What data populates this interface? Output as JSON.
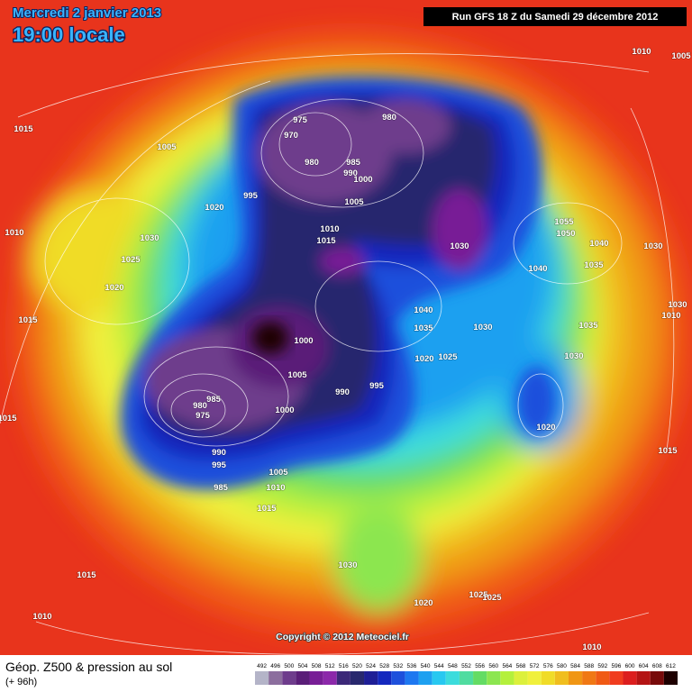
{
  "header": {
    "date": "Mercredi 2 janvier 2013",
    "time": "19:00 locale",
    "run": "Run GFS 18 Z du Samedi 29 décembre 2012"
  },
  "isobar_labels": [
    "1010",
    "1005",
    "1015",
    "975",
    "980",
    "970",
    "1005",
    "980",
    "985",
    "990",
    "1000",
    "995",
    "1005",
    "1020",
    "1010",
    "1030",
    "1025",
    "1020",
    "1015",
    "1010",
    "1015",
    "1055",
    "1050",
    "1030",
    "1040",
    "1030",
    "1040",
    "1035",
    "1030",
    "1010",
    "1000",
    "1040",
    "1035",
    "1030",
    "1020",
    "1025",
    "1035",
    "1030",
    "1005",
    "990",
    "995",
    "985",
    "980",
    "975",
    "1000",
    "1020",
    "1015",
    "1015",
    "990",
    "995",
    "1005",
    "1010",
    "985",
    "1015",
    "1015",
    "1030",
    "1010",
    "1020",
    "1025",
    "1025",
    "1010"
  ],
  "copyright": "Copyright © 2012 Meteociel.fr",
  "footer": {
    "title": "Géop. Z500 & pression au sol",
    "lead": "(+ 96h)"
  },
  "scale": {
    "labels": [
      492,
      496,
      500,
      504,
      508,
      512,
      516,
      520,
      524,
      528,
      532,
      536,
      540,
      544,
      548,
      552,
      556,
      560,
      564,
      568,
      572,
      576,
      580,
      584,
      588,
      592,
      596,
      600,
      604,
      608,
      612
    ],
    "colors": [
      "#b4b4c8",
      "#8c6e9e",
      "#6e3c8c",
      "#5a1e78",
      "#781e96",
      "#8c28aa",
      "#3c2878",
      "#28286e",
      "#1e1e96",
      "#1428be",
      "#1e50dc",
      "#1e78f0",
      "#1ea0f0",
      "#28c8f0",
      "#3cdcdc",
      "#50dca0",
      "#64dc64",
      "#8ce650",
      "#b4f03c",
      "#dcf03c",
      "#f0f03c",
      "#f0dc28",
      "#f0be1e",
      "#f09614",
      "#f07814",
      "#f05a14",
      "#f03c1e",
      "#dc1e1e",
      "#b41414",
      "#780a0a",
      "#1e0000"
    ]
  }
}
